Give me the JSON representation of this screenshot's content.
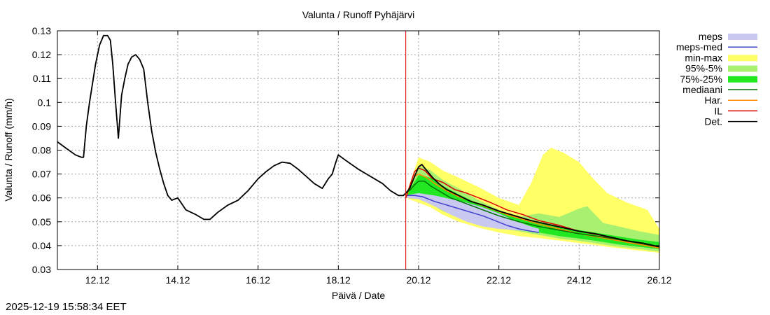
{
  "chart_data": {
    "type": "line",
    "title": "Valunta / Runoff  Pyhäjärvi",
    "xlabel": "Päivä / Date",
    "ylabel": "Valunta / Runoff (mm/h)",
    "ylim": [
      0.03,
      0.13
    ],
    "xlim": [
      11.0,
      26.0
    ],
    "x_ticks": [
      {
        "value": 12,
        "label": "12.12"
      },
      {
        "value": 14,
        "label": "14.12"
      },
      {
        "value": 16,
        "label": "16.12"
      },
      {
        "value": 18,
        "label": "18.12"
      },
      {
        "value": 20,
        "label": "20.12"
      },
      {
        "value": 22,
        "label": "22.12"
      },
      {
        "value": 24,
        "label": "24.12"
      },
      {
        "value": 26,
        "label": "26.12"
      }
    ],
    "y_ticks": [
      {
        "value": 0.03,
        "label": "0.03"
      },
      {
        "value": 0.04,
        "label": "0.04"
      },
      {
        "value": 0.05,
        "label": "0.05"
      },
      {
        "value": 0.06,
        "label": "0.06"
      },
      {
        "value": 0.07,
        "label": "0.07"
      },
      {
        "value": 0.08,
        "label": "0.08"
      },
      {
        "value": 0.09,
        "label": "0.09"
      },
      {
        "value": 0.1,
        "label": "0.1"
      },
      {
        "value": 0.11,
        "label": "0.11"
      },
      {
        "value": 0.12,
        "label": "0.12"
      },
      {
        "value": 0.13,
        "label": "0.13"
      }
    ],
    "grid": true,
    "legend_position": "right",
    "forecast_start": 19.68,
    "colors": {
      "meps": "#c8c8f0",
      "meps_med": "#4040d0",
      "min_max": "#ffff66",
      "p95_5": "#a8f070",
      "p75_25": "#22e822",
      "mediaani": "#007000",
      "har": "#ff8c00",
      "il": "#dd0000",
      "det": "#000000",
      "forecast_line": "#dd0000"
    },
    "legend": [
      {
        "key": "meps",
        "label": "meps",
        "style": "band"
      },
      {
        "key": "meps_med",
        "label": "meps-med",
        "style": "line"
      },
      {
        "key": "min_max",
        "label": "min-max",
        "style": "band"
      },
      {
        "key": "p95_5",
        "label": "95%-5%",
        "style": "band"
      },
      {
        "key": "p75_25",
        "label": "75%-25%",
        "style": "band"
      },
      {
        "key": "mediaani",
        "label": "mediaani",
        "style": "line"
      },
      {
        "key": "har",
        "label": "Har.",
        "style": "line"
      },
      {
        "key": "il",
        "label": "IL",
        "style": "line"
      },
      {
        "key": "det",
        "label": "Det.",
        "style": "line"
      }
    ],
    "series": [
      {
        "name": "Det.",
        "key": "det",
        "x": [
          11.0,
          11.2,
          11.45,
          11.6,
          11.65,
          11.72,
          11.8,
          11.95,
          12.05,
          12.15,
          12.25,
          12.32,
          12.38,
          12.45,
          12.52,
          12.6,
          12.68,
          12.76,
          12.85,
          12.95,
          13.05,
          13.15,
          13.25,
          13.35,
          13.45,
          13.55,
          13.65,
          13.75,
          13.85,
          14.0,
          14.2,
          14.45,
          14.65,
          14.8,
          15.0,
          15.25,
          15.5,
          15.75,
          16.0,
          16.2,
          16.4,
          16.6,
          16.8,
          17.0,
          17.2,
          17.4,
          17.6,
          17.75,
          17.85,
          17.92,
          18.0,
          18.2,
          18.5,
          18.8,
          19.1,
          19.3,
          19.5,
          19.62,
          19.68,
          19.78,
          19.9,
          20.0,
          20.08,
          20.2,
          20.35,
          20.5,
          20.7,
          21.0,
          21.3,
          21.6,
          22.0,
          22.4,
          22.8,
          23.2,
          23.6,
          24.0,
          24.4,
          24.8,
          25.2,
          25.6,
          26.0
        ],
        "values": [
          0.0835,
          0.081,
          0.078,
          0.077,
          0.077,
          0.09,
          0.1,
          0.116,
          0.124,
          0.128,
          0.128,
          0.126,
          0.116,
          0.1,
          0.085,
          0.103,
          0.11,
          0.116,
          0.119,
          0.12,
          0.118,
          0.114,
          0.1,
          0.088,
          0.079,
          0.072,
          0.066,
          0.061,
          0.059,
          0.06,
          0.055,
          0.053,
          0.051,
          0.051,
          0.054,
          0.057,
          0.059,
          0.063,
          0.068,
          0.071,
          0.0735,
          0.075,
          0.0745,
          0.072,
          0.069,
          0.066,
          0.064,
          0.068,
          0.07,
          0.074,
          0.078,
          0.0755,
          0.072,
          0.069,
          0.066,
          0.063,
          0.061,
          0.061,
          0.062,
          0.064,
          0.069,
          0.073,
          0.074,
          0.0715,
          0.0685,
          0.066,
          0.0635,
          0.061,
          0.0585,
          0.057,
          0.0545,
          0.0525,
          0.0505,
          0.049,
          0.0475,
          0.046,
          0.045,
          0.0435,
          0.042,
          0.041,
          0.0395
        ]
      },
      {
        "name": "mediaani",
        "key": "mediaani",
        "x": [
          11.0,
          11.2,
          11.45,
          11.6,
          11.65,
          11.72,
          11.8,
          11.95,
          12.05,
          12.15,
          12.25,
          12.32,
          12.38,
          12.45,
          12.52,
          12.6,
          12.68,
          12.76,
          12.85,
          12.95,
          13.05,
          13.15,
          13.25,
          13.35,
          13.45,
          13.55,
          13.65,
          13.75,
          13.85,
          14.0,
          14.2,
          14.45,
          14.65,
          14.8,
          15.0,
          15.25,
          15.5,
          15.75,
          16.0,
          16.2,
          16.4,
          16.6,
          16.8,
          17.0,
          17.2,
          17.4,
          17.6,
          17.75,
          17.85,
          17.92,
          18.0,
          18.2,
          18.5,
          18.8,
          19.1,
          19.3,
          19.5,
          19.62,
          19.68,
          19.8,
          19.9,
          20.0,
          20.15,
          20.3,
          20.5,
          20.8,
          21.2,
          21.6,
          22.0,
          22.5,
          23.0,
          23.5,
          24.0,
          24.5,
          25.0,
          25.5,
          26.0
        ],
        "values": [
          0.0835,
          0.081,
          0.078,
          0.077,
          0.077,
          0.09,
          0.1,
          0.116,
          0.124,
          0.128,
          0.128,
          0.126,
          0.116,
          0.1,
          0.085,
          0.103,
          0.11,
          0.116,
          0.119,
          0.12,
          0.118,
          0.114,
          0.1,
          0.088,
          0.079,
          0.072,
          0.066,
          0.061,
          0.059,
          0.06,
          0.055,
          0.053,
          0.051,
          0.051,
          0.054,
          0.057,
          0.059,
          0.063,
          0.068,
          0.071,
          0.0735,
          0.075,
          0.0745,
          0.072,
          0.069,
          0.066,
          0.064,
          0.068,
          0.07,
          0.074,
          0.078,
          0.0755,
          0.072,
          0.069,
          0.066,
          0.063,
          0.061,
          0.061,
          0.062,
          0.0635,
          0.0655,
          0.067,
          0.067,
          0.065,
          0.063,
          0.06,
          0.0575,
          0.055,
          0.0525,
          0.05,
          0.048,
          0.0465,
          0.045,
          0.0438,
          0.0425,
          0.041,
          0.0395
        ]
      },
      {
        "name": "IL",
        "key": "il",
        "x": [
          19.68,
          19.8,
          19.9,
          20.0,
          20.15,
          20.35,
          20.6,
          20.9,
          21.2,
          21.5,
          21.8,
          22.2,
          22.6,
          23.0,
          23.5,
          24.0,
          24.5,
          25.0,
          25.5,
          26.0
        ],
        "values": [
          0.06,
          0.066,
          0.071,
          0.0725,
          0.0715,
          0.068,
          0.0665,
          0.0635,
          0.062,
          0.06,
          0.058,
          0.055,
          0.053,
          0.0505,
          0.0485,
          0.046,
          0.0445,
          0.0425,
          0.041,
          0.0395
        ]
      },
      {
        "name": "Har.",
        "key": "har",
        "x": [
          19.68,
          19.8,
          19.9,
          20.0,
          20.2,
          20.4,
          20.7,
          21.0,
          21.4,
          21.8,
          22.2,
          22.6,
          23.0,
          23.5,
          24.0,
          24.5,
          25.0,
          25.5,
          26.0
        ],
        "values": [
          0.06,
          0.065,
          0.069,
          0.07,
          0.0685,
          0.066,
          0.063,
          0.0605,
          0.058,
          0.0555,
          0.053,
          0.051,
          0.049,
          0.047,
          0.045,
          0.0435,
          0.042,
          0.0405,
          0.039
        ]
      },
      {
        "name": "meps-med",
        "key": "meps_med",
        "x": [
          19.68,
          19.9,
          20.1,
          20.4,
          20.7,
          21.0,
          21.3,
          21.6,
          21.9,
          22.2,
          22.5,
          22.8,
          23.0
        ],
        "values": [
          0.061,
          0.061,
          0.0605,
          0.0585,
          0.057,
          0.0555,
          0.054,
          0.0525,
          0.0505,
          0.0485,
          0.047,
          0.046,
          0.0455
        ]
      }
    ],
    "bands": [
      {
        "name": "min-max",
        "key": "min_max",
        "x": [
          19.68,
          20.0,
          20.3,
          20.6,
          21.0,
          21.5,
          22.0,
          22.5,
          22.8,
          23.1,
          23.3,
          23.6,
          24.0,
          24.3,
          24.7,
          25.2,
          25.7,
          26.0
        ],
        "lower": [
          0.06,
          0.058,
          0.056,
          0.053,
          0.05,
          0.0475,
          0.0455,
          0.044,
          0.0435,
          0.043,
          0.0425,
          0.042,
          0.041,
          0.0405,
          0.0395,
          0.0385,
          0.0375,
          0.037
        ],
        "upper": [
          0.061,
          0.077,
          0.075,
          0.0715,
          0.0685,
          0.0645,
          0.06,
          0.057,
          0.066,
          0.078,
          0.081,
          0.079,
          0.075,
          0.069,
          0.062,
          0.058,
          0.055,
          0.047
        ]
      },
      {
        "name": "95%-5%",
        "key": "p95_5",
        "x": [
          19.68,
          20.0,
          20.3,
          20.6,
          21.0,
          21.5,
          22.0,
          22.5,
          23.0,
          23.5,
          24.0,
          24.2,
          24.6,
          25.0,
          25.5,
          26.0
        ],
        "lower": [
          0.06,
          0.0595,
          0.0575,
          0.0545,
          0.052,
          0.0495,
          0.0475,
          0.046,
          0.0445,
          0.043,
          0.042,
          0.0415,
          0.0405,
          0.0395,
          0.0385,
          0.0375
        ],
        "upper": [
          0.061,
          0.0735,
          0.0715,
          0.0675,
          0.064,
          0.059,
          0.055,
          0.052,
          0.0535,
          0.052,
          0.0555,
          0.0565,
          0.0495,
          0.048,
          0.046,
          0.0445
        ]
      },
      {
        "name": "75%-25%",
        "key": "p75_25",
        "x": [
          19.68,
          20.0,
          20.3,
          20.6,
          21.0,
          21.5,
          22.0,
          22.5,
          23.0,
          23.5,
          24.0,
          24.5,
          25.0,
          25.5,
          26.0
        ],
        "lower": [
          0.06,
          0.061,
          0.0595,
          0.057,
          0.0545,
          0.0515,
          0.049,
          0.047,
          0.0455,
          0.044,
          0.043,
          0.0418,
          0.0405,
          0.0395,
          0.0385
        ],
        "upper": [
          0.061,
          0.0695,
          0.0685,
          0.065,
          0.0615,
          0.0575,
          0.054,
          0.0515,
          0.0495,
          0.048,
          0.0465,
          0.0452,
          0.0438,
          0.0425,
          0.0415
        ]
      },
      {
        "name": "meps",
        "key": "meps",
        "x": [
          19.68,
          20.0,
          20.4,
          20.8,
          21.2,
          21.6,
          22.0,
          22.4,
          22.8,
          23.0
        ],
        "lower": [
          0.06,
          0.0595,
          0.0565,
          0.053,
          0.05,
          0.048,
          0.047,
          0.0465,
          0.046,
          0.0455
        ],
        "upper": [
          0.061,
          0.062,
          0.061,
          0.0595,
          0.058,
          0.056,
          0.0535,
          0.0505,
          0.048,
          0.047
        ]
      }
    ]
  },
  "footer": {
    "timestamp": "2025-12-19 15:58:34 EET"
  }
}
